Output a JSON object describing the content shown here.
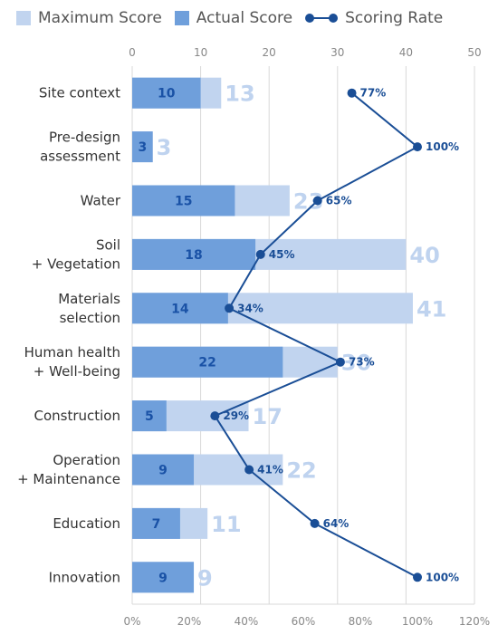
{
  "chart_data": {
    "type": "bar",
    "orientation": "horizontal",
    "categories": [
      [
        "Site context"
      ],
      [
        "Pre-design",
        "assessment"
      ],
      [
        "Water"
      ],
      [
        "Soil",
        "+ Vegetation"
      ],
      [
        "Materials",
        "selection"
      ],
      [
        "Human health",
        "+ Well-being"
      ],
      [
        "Construction"
      ],
      [
        "Operation",
        "+ Maintenance"
      ],
      [
        "Education"
      ],
      [
        "Innovation"
      ]
    ],
    "series": [
      {
        "name": "Maximum Score",
        "type": "bar",
        "color": "#c1d4ef",
        "values": [
          13,
          3,
          23,
          40,
          41,
          30,
          17,
          22,
          11,
          9
        ]
      },
      {
        "name": "Actual Score",
        "type": "bar",
        "color": "#6f9fdb",
        "values": [
          10,
          3,
          15,
          18,
          14,
          22,
          5,
          9,
          7,
          9
        ]
      },
      {
        "name": "Scoring Rate",
        "type": "line",
        "color": "#1a4e96",
        "values": [
          77,
          100,
          65,
          45,
          34,
          73,
          29,
          41,
          64,
          100
        ],
        "labels": [
          "77%",
          "100%",
          "65%",
          "45%",
          "34%",
          "73%",
          "29%",
          "41%",
          "64%",
          "100%"
        ]
      }
    ],
    "x_top": {
      "ticks": [
        "0",
        "10",
        "20",
        "30",
        "40",
        "50"
      ],
      "range": [
        0,
        50
      ]
    },
    "x_bottom": {
      "ticks": [
        "0%",
        "20%",
        "40%",
        "60%",
        "80%",
        "100%",
        "120%"
      ],
      "range": [
        0,
        120
      ]
    },
    "legend": {
      "position": "top"
    },
    "grid": true
  }
}
